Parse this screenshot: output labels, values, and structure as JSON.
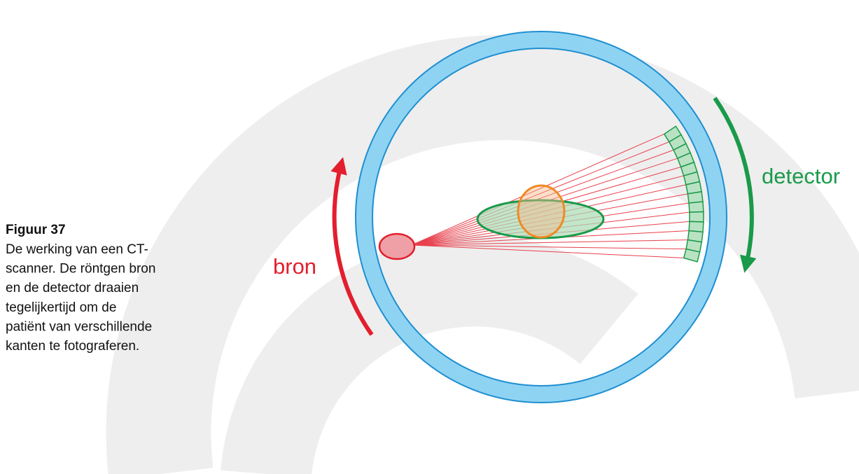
{
  "caption": {
    "title": "Figuur 37",
    "lines": [
      "De werking van een CT-",
      "scanner. De röntgen bron",
      "en de detector draaien",
      "tegelijkertijd om de",
      "patiënt van verschillende",
      "kanten te fotograferen."
    ]
  },
  "labels": {
    "source": "bron",
    "detector": "detector"
  }
}
